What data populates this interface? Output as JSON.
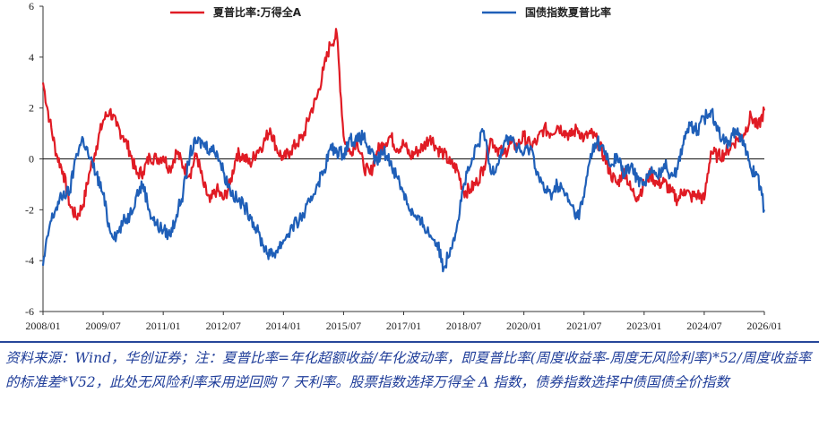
{
  "chart_data": {
    "type": "line",
    "ylim": [
      -6,
      6
    ],
    "yticks": [
      "6",
      "4",
      "2",
      "0",
      "-2",
      "-4",
      "-6"
    ],
    "xticks": [
      "2008/01",
      "2009/07",
      "2011/01",
      "2012/07",
      "2014/01",
      "2015/07",
      "2017/01",
      "2018/07",
      "2020/01",
      "2021/07",
      "2023/01",
      "2024/07",
      "2026/01"
    ],
    "xrange": [
      "2008/01",
      "2026/01"
    ],
    "grid": false,
    "legend_position": "top",
    "series": [
      {
        "name": "夏普比率:万得全A",
        "color": "#e01b24",
        "points": [
          [
            "2008/01",
            3.0
          ],
          [
            "2008/03",
            1.5
          ],
          [
            "2008/05",
            0.2
          ],
          [
            "2008/07",
            -0.5
          ],
          [
            "2008/09",
            -1.8
          ],
          [
            "2008/11",
            -2.3
          ],
          [
            "2009/01",
            -1.8
          ],
          [
            "2009/03",
            -0.5
          ],
          [
            "2009/05",
            0.5
          ],
          [
            "2009/07",
            1.5
          ],
          [
            "2009/09",
            1.9
          ],
          [
            "2009/11",
            1.3
          ],
          [
            "2010/01",
            0.9
          ],
          [
            "2010/03",
            0.3
          ],
          [
            "2010/05",
            -0.6
          ],
          [
            "2010/07",
            -0.5
          ],
          [
            "2010/09",
            0.1
          ],
          [
            "2010/11",
            0.0
          ],
          [
            "2011/01",
            0.1
          ],
          [
            "2011/03",
            -0.4
          ],
          [
            "2011/05",
            0.3
          ],
          [
            "2011/07",
            -0.3
          ],
          [
            "2011/09",
            -0.6
          ],
          [
            "2011/11",
            0.2
          ],
          [
            "2012/01",
            -1.0
          ],
          [
            "2012/03",
            -1.7
          ],
          [
            "2012/05",
            -1.2
          ],
          [
            "2012/07",
            -1.6
          ],
          [
            "2012/09",
            -1.0
          ],
          [
            "2012/11",
            0.2
          ],
          [
            "2013/01",
            0.1
          ],
          [
            "2013/03",
            -0.2
          ],
          [
            "2013/05",
            0.3
          ],
          [
            "2013/07",
            0.6
          ],
          [
            "2013/09",
            1.2
          ],
          [
            "2013/11",
            0.4
          ],
          [
            "2014/01",
            0.0
          ],
          [
            "2014/03",
            0.3
          ],
          [
            "2014/05",
            0.6
          ],
          [
            "2014/07",
            0.9
          ],
          [
            "2014/09",
            1.8
          ],
          [
            "2014/11",
            2.4
          ],
          [
            "2015/01",
            3.5
          ],
          [
            "2015/03",
            4.5
          ],
          [
            "2015/05",
            4.9
          ],
          [
            "2015/07",
            0.9
          ],
          [
            "2015/09",
            0.2
          ],
          [
            "2015/11",
            0.8
          ],
          [
            "2016/01",
            -0.3
          ],
          [
            "2016/03",
            -0.6
          ],
          [
            "2016/05",
            0.3
          ],
          [
            "2016/07",
            0.6
          ],
          [
            "2016/09",
            0.9
          ],
          [
            "2016/11",
            0.4
          ],
          [
            "2017/01",
            0.6
          ],
          [
            "2017/03",
            0.1
          ],
          [
            "2017/05",
            0.3
          ],
          [
            "2017/07",
            0.5
          ],
          [
            "2017/09",
            0.9
          ],
          [
            "2017/11",
            0.4
          ],
          [
            "2018/01",
            0.2
          ],
          [
            "2018/03",
            -0.2
          ],
          [
            "2018/05",
            -0.4
          ],
          [
            "2018/07",
            -1.3
          ],
          [
            "2018/09",
            -1.2
          ],
          [
            "2018/11",
            -0.9
          ],
          [
            "2019/01",
            -0.3
          ],
          [
            "2019/03",
            0.8
          ],
          [
            "2019/05",
            0.4
          ],
          [
            "2019/07",
            0.2
          ],
          [
            "2019/09",
            0.6
          ],
          [
            "2019/11",
            0.5
          ],
          [
            "2020/01",
            0.9
          ],
          [
            "2020/03",
            0.5
          ],
          [
            "2020/05",
            0.7
          ],
          [
            "2020/07",
            1.2
          ],
          [
            "2020/09",
            1.0
          ],
          [
            "2020/11",
            1.3
          ],
          [
            "2021/01",
            1.1
          ],
          [
            "2021/03",
            0.9
          ],
          [
            "2021/05",
            1.2
          ],
          [
            "2021/07",
            0.8
          ],
          [
            "2021/09",
            1.0
          ],
          [
            "2021/11",
            0.7
          ],
          [
            "2022/01",
            0.1
          ],
          [
            "2022/03",
            -0.6
          ],
          [
            "2022/05",
            -1.0
          ],
          [
            "2022/07",
            -0.4
          ],
          [
            "2022/09",
            -1.2
          ],
          [
            "2022/11",
            -1.5
          ],
          [
            "2023/01",
            -1.0
          ],
          [
            "2023/03",
            -0.6
          ],
          [
            "2023/05",
            -1.0
          ],
          [
            "2023/07",
            -0.9
          ],
          [
            "2023/09",
            -1.3
          ],
          [
            "2023/11",
            -1.6
          ],
          [
            "2024/01",
            -1.2
          ],
          [
            "2024/03",
            -1.5
          ],
          [
            "2024/05",
            -1.4
          ],
          [
            "2024/07",
            -1.6
          ],
          [
            "2024/09",
            0.3
          ],
          [
            "2024/11",
            0.1
          ],
          [
            "2025/01",
            0.2
          ],
          [
            "2025/03",
            0.5
          ],
          [
            "2025/05",
            0.8
          ],
          [
            "2025/07",
            1.0
          ],
          [
            "2025/09",
            1.7
          ],
          [
            "2025/11",
            1.2
          ],
          [
            "2026/01",
            1.9
          ]
        ]
      },
      {
        "name": "国债指数夏普比率",
        "color": "#1f5fb8",
        "points": [
          [
            "2008/01",
            -4.2
          ],
          [
            "2008/03",
            -2.6
          ],
          [
            "2008/05",
            -1.9
          ],
          [
            "2008/07",
            -1.4
          ],
          [
            "2008/09",
            -1.3
          ],
          [
            "2008/11",
            0.2
          ],
          [
            "2009/01",
            0.8
          ],
          [
            "2009/03",
            0.0
          ],
          [
            "2009/05",
            -0.6
          ],
          [
            "2009/07",
            -1.4
          ],
          [
            "2009/09",
            -2.8
          ],
          [
            "2009/11",
            -3.0
          ],
          [
            "2010/01",
            -2.5
          ],
          [
            "2010/03",
            -2.2
          ],
          [
            "2010/05",
            -1.4
          ],
          [
            "2010/07",
            -1.0
          ],
          [
            "2010/09",
            -2.1
          ],
          [
            "2010/11",
            -2.6
          ],
          [
            "2011/01",
            -2.8
          ],
          [
            "2011/03",
            -3.0
          ],
          [
            "2011/05",
            -2.2
          ],
          [
            "2011/07",
            -1.3
          ],
          [
            "2011/09",
            0.2
          ],
          [
            "2011/11",
            0.7
          ],
          [
            "2012/01",
            0.6
          ],
          [
            "2012/03",
            0.4
          ],
          [
            "2012/05",
            0.3
          ],
          [
            "2012/07",
            -0.5
          ],
          [
            "2012/09",
            -1.2
          ],
          [
            "2012/11",
            -1.6
          ],
          [
            "2013/01",
            -1.8
          ],
          [
            "2013/03",
            -2.2
          ],
          [
            "2013/05",
            -2.8
          ],
          [
            "2013/07",
            -3.4
          ],
          [
            "2013/09",
            -3.8
          ],
          [
            "2013/11",
            -3.6
          ],
          [
            "2014/01",
            -3.2
          ],
          [
            "2014/03",
            -2.8
          ],
          [
            "2014/05",
            -2.5
          ],
          [
            "2014/07",
            -2.2
          ],
          [
            "2014/09",
            -1.7
          ],
          [
            "2014/11",
            -1.0
          ],
          [
            "2015/01",
            -0.5
          ],
          [
            "2015/03",
            0.4
          ],
          [
            "2015/05",
            0.3
          ],
          [
            "2015/07",
            0.2
          ],
          [
            "2015/09",
            0.8
          ],
          [
            "2015/11",
            0.7
          ],
          [
            "2016/01",
            0.9
          ],
          [
            "2016/03",
            0.2
          ],
          [
            "2016/05",
            -0.1
          ],
          [
            "2016/07",
            0.3
          ],
          [
            "2016/09",
            -0.1
          ],
          [
            "2016/11",
            -0.7
          ],
          [
            "2017/01",
            -1.3
          ],
          [
            "2017/03",
            -2.0
          ],
          [
            "2017/05",
            -2.4
          ],
          [
            "2017/07",
            -2.6
          ],
          [
            "2017/09",
            -3.0
          ],
          [
            "2017/11",
            -3.3
          ],
          [
            "2018/01",
            -4.3
          ],
          [
            "2018/03",
            -3.5
          ],
          [
            "2018/05",
            -2.6
          ],
          [
            "2018/07",
            -1.0
          ],
          [
            "2018/09",
            -0.3
          ],
          [
            "2018/11",
            0.5
          ],
          [
            "2019/01",
            1.1
          ],
          [
            "2019/03",
            -0.5
          ],
          [
            "2019/05",
            -0.2
          ],
          [
            "2019/07",
            0.6
          ],
          [
            "2019/09",
            0.9
          ],
          [
            "2019/11",
            0.4
          ],
          [
            "2020/01",
            0.2
          ],
          [
            "2020/03",
            0.5
          ],
          [
            "2020/05",
            -0.5
          ],
          [
            "2020/07",
            -1.2
          ],
          [
            "2020/09",
            -1.4
          ],
          [
            "2020/11",
            -1.0
          ],
          [
            "2021/01",
            -1.3
          ],
          [
            "2021/03",
            -1.8
          ],
          [
            "2021/05",
            -2.3
          ],
          [
            "2021/07",
            -1.5
          ],
          [
            "2021/09",
            0.2
          ],
          [
            "2021/11",
            0.7
          ],
          [
            "2022/01",
            0.3
          ],
          [
            "2022/03",
            -0.3
          ],
          [
            "2022/05",
            0.1
          ],
          [
            "2022/07",
            -0.6
          ],
          [
            "2022/09",
            -0.3
          ],
          [
            "2022/11",
            -0.8
          ],
          [
            "2023/01",
            -0.9
          ],
          [
            "2023/03",
            -0.5
          ],
          [
            "2023/05",
            -0.7
          ],
          [
            "2023/07",
            -0.2
          ],
          [
            "2023/09",
            -0.6
          ],
          [
            "2023/11",
            -0.4
          ],
          [
            "2024/01",
            0.9
          ],
          [
            "2024/03",
            1.3
          ],
          [
            "2024/05",
            1.1
          ],
          [
            "2024/07",
            1.6
          ],
          [
            "2024/09",
            1.9
          ],
          [
            "2024/11",
            1.3
          ],
          [
            "2025/01",
            0.6
          ],
          [
            "2025/03",
            0.8
          ],
          [
            "2025/05",
            1.2
          ],
          [
            "2025/07",
            0.5
          ],
          [
            "2025/09",
            -0.4
          ],
          [
            "2025/11",
            -0.6
          ],
          [
            "2026/01",
            -2.0
          ]
        ]
      }
    ]
  },
  "source_note": "资料来源：Wind，华创证券；注：夏普比率=年化超额收益/年化波动率，即夏普比率(周度收益率-周度无风险利率)*52/周度收益率的标准差*V52，此处无风险利率采用逆回购 7 天利率。股票指数选择万得全 A 指数，债券指数选择中债国债全价指数"
}
